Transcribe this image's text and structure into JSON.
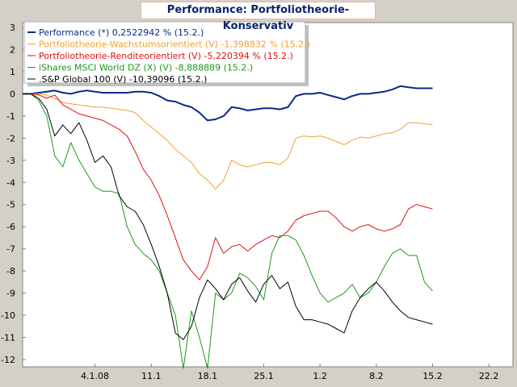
{
  "chart_data": {
    "type": "line",
    "title": "Performance: Portfoliotheorie-Konservativ",
    "xlabel": "",
    "ylabel": "",
    "ylim": [
      -12,
      3
    ],
    "yticks": [
      3,
      2,
      1,
      0,
      -1,
      -2,
      -3,
      -4,
      -5,
      -6,
      -7,
      -8,
      -9,
      -10,
      -11,
      -12
    ],
    "xlim": [
      "2007-12-26",
      "2008-02-25"
    ],
    "xticks": [
      {
        "date": "2008-01-04",
        "label": "4.1.08"
      },
      {
        "date": "2008-01-11",
        "label": "11.1"
      },
      {
        "date": "2008-01-18",
        "label": "18.1"
      },
      {
        "date": "2008-01-25",
        "label": "25.1"
      },
      {
        "date": "2008-02-01",
        "label": "1.2"
      },
      {
        "date": "2008-02-08",
        "label": "8.2"
      },
      {
        "date": "2008-02-15",
        "label": "15.2"
      },
      {
        "date": "2008-02-22",
        "label": "22.2"
      }
    ],
    "grid": false,
    "legend_position": "top-left",
    "x": [
      "2007-12-26",
      "2007-12-27",
      "2007-12-28",
      "2007-12-29",
      "2007-12-30",
      "2007-12-31",
      "2008-01-01",
      "2008-01-02",
      "2008-01-03",
      "2008-01-04",
      "2008-01-05",
      "2008-01-06",
      "2008-01-07",
      "2008-01-08",
      "2008-01-09",
      "2008-01-10",
      "2008-01-11",
      "2008-01-12",
      "2008-01-13",
      "2008-01-14",
      "2008-01-15",
      "2008-01-16",
      "2008-01-17",
      "2008-01-18",
      "2008-01-19",
      "2008-01-20",
      "2008-01-21",
      "2008-01-22",
      "2008-01-23",
      "2008-01-24",
      "2008-01-25",
      "2008-01-26",
      "2008-01-27",
      "2008-01-28",
      "2008-01-29",
      "2008-01-30",
      "2008-01-31",
      "2008-02-01",
      "2008-02-02",
      "2008-02-03",
      "2008-02-04",
      "2008-02-05",
      "2008-02-06",
      "2008-02-07",
      "2008-02-08",
      "2008-02-09",
      "2008-02-10",
      "2008-02-11",
      "2008-02-12",
      "2008-02-13",
      "2008-02-14",
      "2008-02-15"
    ],
    "series": [
      {
        "name": "Performance (*) 0,2522942 % (15.2.)",
        "color": "#0a2a8a",
        "values": [
          0,
          0,
          0.05,
          0.1,
          0.15,
          0.05,
          0,
          0.1,
          0.15,
          0.1,
          0.05,
          0.05,
          0.05,
          0.05,
          0.1,
          0.1,
          0.05,
          -0.1,
          -0.3,
          -0.35,
          -0.5,
          -0.6,
          -0.85,
          -1.2,
          -1.15,
          -1.0,
          -0.6,
          -0.65,
          -0.75,
          -0.7,
          -0.65,
          -0.65,
          -0.7,
          -0.6,
          -0.1,
          0.0,
          0.0,
          0.05,
          -0.05,
          -0.15,
          -0.25,
          -0.1,
          0.0,
          0.0,
          0.05,
          0.1,
          0.2,
          0.35,
          0.3,
          0.25,
          0.25,
          0.25
        ]
      },
      {
        "name": "Portfoliotheorie-Wachstumsorientiert (V) -1,398832 % (15.2.)",
        "color": "#f0a030",
        "values": [
          0,
          0,
          0,
          -0.05,
          -0.2,
          -0.4,
          -0.45,
          -0.5,
          -0.55,
          -0.6,
          -0.6,
          -0.65,
          -0.7,
          -0.75,
          -0.85,
          -1.2,
          -1.5,
          -1.8,
          -2.1,
          -2.5,
          -2.8,
          -3.1,
          -3.6,
          -3.9,
          -4.3,
          -3.9,
          -3.0,
          -3.2,
          -3.3,
          -3.2,
          -3.1,
          -3.1,
          -3.2,
          -2.9,
          -2.0,
          -1.9,
          -1.95,
          -1.9,
          -2.0,
          -2.15,
          -2.3,
          -2.1,
          -1.95,
          -2.0,
          -1.9,
          -1.8,
          -1.75,
          -1.6,
          -1.3,
          -1.3,
          -1.35,
          -1.4
        ]
      },
      {
        "name": "Portfoliotheorie-Renditeorientiert (V) -5,220394 % (15.2.)",
        "color": "#e01010",
        "values": [
          0,
          0,
          -0.05,
          -0.2,
          -0.05,
          -0.5,
          -0.7,
          -0.9,
          -1.0,
          -1.1,
          -1.2,
          -1.4,
          -1.6,
          -1.9,
          -2.6,
          -3.4,
          -3.9,
          -4.6,
          -5.5,
          -6.5,
          -7.5,
          -8.0,
          -8.4,
          -7.8,
          -6.5,
          -7.2,
          -6.9,
          -6.8,
          -7.1,
          -6.8,
          -6.6,
          -6.4,
          -6.5,
          -6.2,
          -5.7,
          -5.5,
          -5.4,
          -5.3,
          -5.3,
          -5.6,
          -6.0,
          -6.2,
          -6.0,
          -5.9,
          -6.1,
          -6.2,
          -6.1,
          -5.9,
          -5.2,
          -5.0,
          -5.1,
          -5.2
        ]
      },
      {
        "name": "iShares MSCI World DZ (X) (V) -8,888889 (15.2.)",
        "color": "#1a9a1a",
        "values": [
          0,
          0,
          -0.3,
          -1.0,
          -2.8,
          -3.3,
          -2.2,
          -3.0,
          -3.6,
          -4.2,
          -4.4,
          -4.4,
          -4.5,
          -6.0,
          -6.8,
          -7.2,
          -7.5,
          -8.0,
          -9.0,
          -10.0,
          -12.4,
          -9.8,
          -11.0,
          -12.4,
          -9.0,
          -9.3,
          -9.0,
          -8.1,
          -8.3,
          -8.7,
          -9.3,
          -7.2,
          -6.4,
          -6.4,
          -6.6,
          -7.3,
          -8.2,
          -9.0,
          -9.4,
          -9.2,
          -9.0,
          -8.6,
          -9.2,
          -9.0,
          -8.5,
          -7.8,
          -7.2,
          -7.0,
          -7.3,
          -7.3,
          -8.5,
          -8.9
        ]
      },
      {
        "name": ".S&P Global 100 (V) -10,39096 (15.2.)",
        "color": "#000000",
        "values": [
          0,
          0,
          -0.2,
          -0.7,
          -1.9,
          -1.4,
          -1.8,
          -1.3,
          -2.1,
          -3.1,
          -2.8,
          -3.3,
          -4.6,
          -5.1,
          -5.3,
          -5.9,
          -6.8,
          -7.8,
          -9.0,
          -10.8,
          -11.1,
          -10.5,
          -9.2,
          -8.4,
          -8.8,
          -9.3,
          -8.6,
          -8.3,
          -8.9,
          -9.4,
          -8.6,
          -8.2,
          -8.8,
          -8.5,
          -9.6,
          -10.2,
          -10.2,
          -10.3,
          -10.4,
          -10.6,
          -10.8,
          -9.8,
          -9.2,
          -8.8,
          -8.5,
          -8.9,
          -9.4,
          -9.8,
          -10.1,
          -10.2,
          -10.3,
          -10.4
        ]
      }
    ]
  }
}
